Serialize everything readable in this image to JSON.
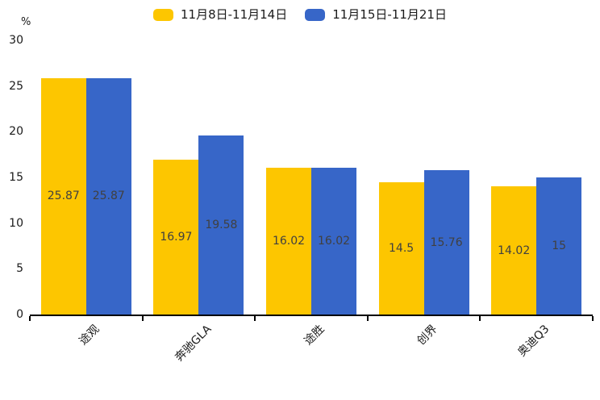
{
  "legend": {
    "series1_label": "11月8日-11月14日",
    "series2_label": "11月15日-11月21日"
  },
  "colors": {
    "series1": "#FDC600",
    "series2": "#3766C8",
    "axis": "#000000",
    "value_label_text": "#404040"
  },
  "chart_data": {
    "type": "bar",
    "title": "",
    "xlabel": "",
    "ylabel": "%",
    "categories": [
      "途观",
      "奔驰GLA",
      "途胜",
      "创界",
      "奥迪Q3"
    ],
    "series": [
      {
        "name": "11月8日-11月14日",
        "color": "#FDC600",
        "values": [
          25.87,
          16.97,
          16.02,
          14.5,
          14.02
        ]
      },
      {
        "name": "11月15日-11月21日",
        "color": "#3766C8",
        "values": [
          25.87,
          19.58,
          16.02,
          15.76,
          15
        ]
      }
    ],
    "value_labels_shown": true,
    "ylim": [
      0,
      30
    ],
    "yticks": [
      0,
      5,
      10,
      15,
      20,
      25,
      30
    ],
    "grid": "off",
    "legend_position": "top-center",
    "xtick_label_rotation_deg": 45
  }
}
